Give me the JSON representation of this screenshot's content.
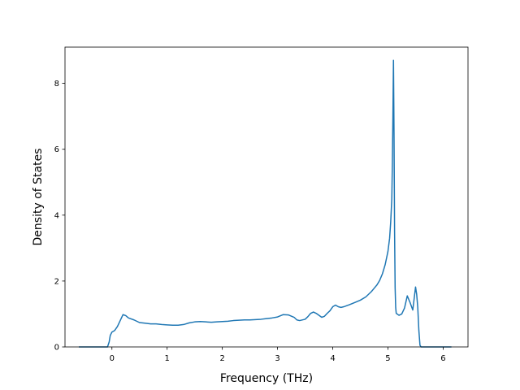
{
  "chart_data": {
    "type": "line",
    "xlabel": "Frequency (THz)",
    "ylabel": "Density of States",
    "xlim": [
      -0.85,
      6.45
    ],
    "ylim": [
      0,
      9.1
    ],
    "xticks": [
      0,
      1,
      2,
      3,
      4,
      5,
      6
    ],
    "yticks": [
      0,
      2,
      4,
      6,
      8
    ],
    "grid": false,
    "line_color": "#1f77b4",
    "series": [
      {
        "x": [
          -0.6,
          -0.2,
          -0.12,
          -0.08,
          -0.05,
          -0.03,
          0.0,
          0.05,
          0.1,
          0.15,
          0.2,
          0.25,
          0.3,
          0.4,
          0.5,
          0.6,
          0.7,
          0.8,
          0.9,
          1.0,
          1.1,
          1.2,
          1.3,
          1.4,
          1.5,
          1.6,
          1.7,
          1.8,
          1.9,
          2.0,
          2.1,
          2.2,
          2.3,
          2.4,
          2.5,
          2.6,
          2.7,
          2.8,
          2.9,
          3.0,
          3.1,
          3.2,
          3.3,
          3.35,
          3.4,
          3.5,
          3.55,
          3.6,
          3.65,
          3.7,
          3.8,
          3.85,
          3.9,
          3.95,
          4.0,
          4.05,
          4.1,
          4.15,
          4.2,
          4.3,
          4.4,
          4.5,
          4.6,
          4.7,
          4.75,
          4.8,
          4.85,
          4.9,
          4.95,
          5.0,
          5.03,
          5.05,
          5.07,
          5.08,
          5.09,
          5.1,
          5.11,
          5.12,
          5.13,
          5.14,
          5.15,
          5.2,
          5.25,
          5.3,
          5.35,
          5.4,
          5.45,
          5.5,
          5.52,
          5.54,
          5.56,
          5.58,
          5.6,
          5.65,
          6.15
        ],
        "y": [
          0,
          0,
          0,
          0,
          0.15,
          0.35,
          0.45,
          0.5,
          0.62,
          0.8,
          0.98,
          0.95,
          0.88,
          0.82,
          0.74,
          0.72,
          0.7,
          0.7,
          0.68,
          0.67,
          0.66,
          0.66,
          0.68,
          0.73,
          0.76,
          0.77,
          0.76,
          0.75,
          0.76,
          0.77,
          0.78,
          0.8,
          0.81,
          0.82,
          0.82,
          0.83,
          0.84,
          0.86,
          0.88,
          0.91,
          0.98,
          0.97,
          0.9,
          0.82,
          0.8,
          0.84,
          0.92,
          1.02,
          1.06,
          1.02,
          0.9,
          0.93,
          1.02,
          1.1,
          1.22,
          1.27,
          1.22,
          1.2,
          1.22,
          1.28,
          1.35,
          1.42,
          1.52,
          1.68,
          1.78,
          1.88,
          2.02,
          2.22,
          2.5,
          2.9,
          3.3,
          3.8,
          4.5,
          5.6,
          7.0,
          8.7,
          6.5,
          3.5,
          1.8,
          1.2,
          1.02,
          0.96,
          1.0,
          1.18,
          1.55,
          1.35,
          1.12,
          1.82,
          1.6,
          1.2,
          0.5,
          0.05,
          0,
          0,
          0
        ]
      }
    ]
  }
}
